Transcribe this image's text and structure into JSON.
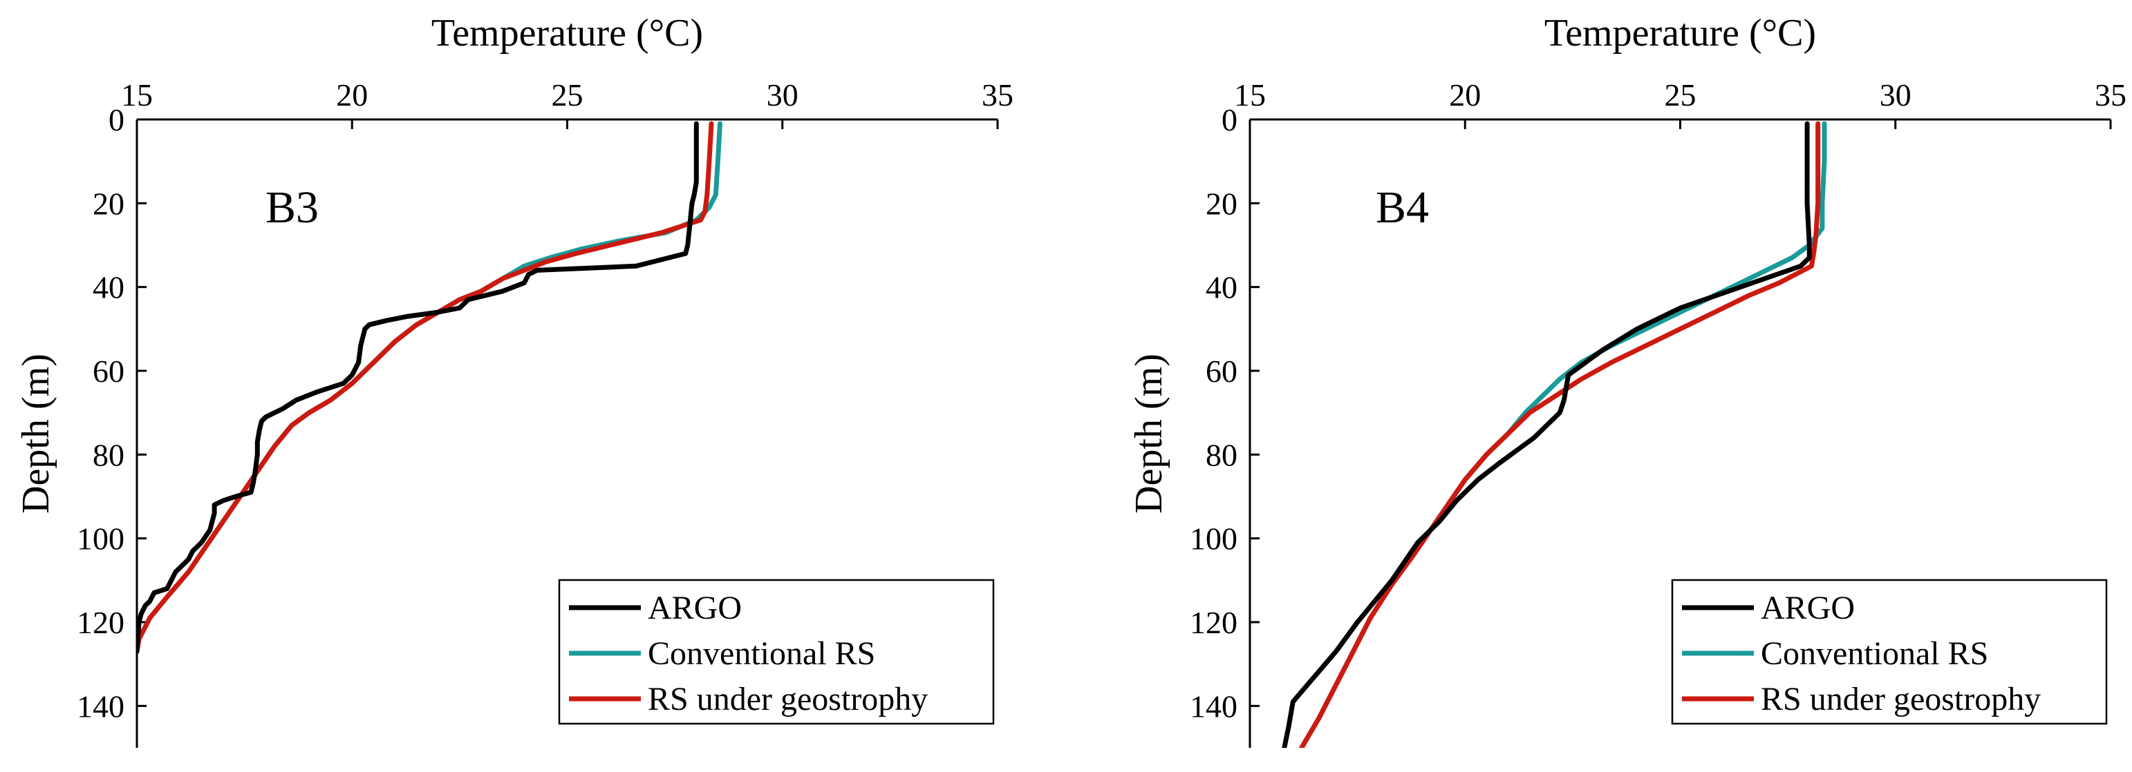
{
  "chart_data": [
    {
      "type": "line",
      "panel_label": "B3",
      "xlabel": "Temperature (°C)",
      "ylabel": "Depth (m)",
      "xlim": [
        15,
        35
      ],
      "ylim": [
        0,
        150
      ],
      "y_reversed": true,
      "x_axis_position": "top",
      "xticks": [
        "15",
        "20",
        "25",
        "30",
        "35"
      ],
      "yticks": [
        "0",
        "20",
        "40",
        "60",
        "80",
        "100",
        "120",
        "140"
      ],
      "grid": false,
      "legend_position": "bottom-right",
      "series": [
        {
          "name": "ARGO",
          "color": "#000000",
          "points": [
            [
              28.0,
              1
            ],
            [
              28.0,
              5
            ],
            [
              28.0,
              10
            ],
            [
              28.0,
              15
            ],
            [
              27.95,
              18
            ],
            [
              27.9,
              20
            ],
            [
              27.85,
              25
            ],
            [
              27.8,
              30
            ],
            [
              27.75,
              32
            ],
            [
              26.6,
              35
            ],
            [
              24.3,
              36
            ],
            [
              24.1,
              37
            ],
            [
              24.0,
              39
            ],
            [
              23.5,
              41
            ],
            [
              23.1,
              42
            ],
            [
              22.7,
              43
            ],
            [
              22.5,
              45
            ],
            [
              22.0,
              46
            ],
            [
              21.3,
              47
            ],
            [
              20.8,
              48
            ],
            [
              20.4,
              49
            ],
            [
              20.3,
              50
            ],
            [
              20.2,
              54
            ],
            [
              20.15,
              58
            ],
            [
              20.0,
              61
            ],
            [
              19.8,
              63
            ],
            [
              19.2,
              65
            ],
            [
              18.7,
              67
            ],
            [
              18.4,
              69
            ],
            [
              18.0,
              71
            ],
            [
              17.9,
              72
            ],
            [
              17.85,
              74
            ],
            [
              17.8,
              77
            ],
            [
              17.8,
              80
            ],
            [
              17.75,
              84
            ],
            [
              17.7,
              87
            ],
            [
              17.65,
              89
            ],
            [
              17.3,
              90
            ],
            [
              17.0,
              91
            ],
            [
              16.8,
              92
            ],
            [
              16.8,
              94
            ],
            [
              16.75,
              96
            ],
            [
              16.7,
              98
            ],
            [
              16.5,
              101
            ],
            [
              16.3,
              103
            ],
            [
              16.2,
              105
            ],
            [
              16.0,
              107
            ],
            [
              15.9,
              108
            ],
            [
              15.7,
              112
            ],
            [
              15.4,
              113
            ],
            [
              15.3,
              115
            ],
            [
              15.2,
              116
            ],
            [
              15.1,
              118
            ],
            [
              15.05,
              120
            ],
            [
              15.02,
              124
            ],
            [
              15.0,
              127
            ]
          ]
        },
        {
          "name": "Conventional RS",
          "color": "#1a9a9a",
          "points": [
            [
              28.55,
              1
            ],
            [
              28.5,
              10
            ],
            [
              28.45,
              18
            ],
            [
              28.3,
              21
            ],
            [
              28.0,
              24
            ],
            [
              27.3,
              27
            ],
            [
              26.2,
              29
            ],
            [
              25.3,
              31
            ],
            [
              24.6,
              33
            ],
            [
              24.0,
              35
            ],
            [
              23.5,
              38
            ],
            [
              23.0,
              41
            ],
            [
              22.5,
              43
            ],
            [
              22.0,
              46
            ],
            [
              21.5,
              49
            ],
            [
              21.0,
              53
            ],
            [
              20.5,
              58
            ],
            [
              20.0,
              63
            ],
            [
              19.5,
              67
            ],
            [
              19.0,
              70
            ],
            [
              18.6,
              73
            ],
            [
              18.2,
              78
            ],
            [
              17.8,
              84
            ],
            [
              17.4,
              90
            ],
            [
              17.0,
              96
            ],
            [
              16.6,
              102
            ],
            [
              16.2,
              108
            ],
            [
              15.7,
              114
            ],
            [
              15.3,
              119
            ],
            [
              15.05,
              124
            ],
            [
              15.0,
              126
            ]
          ]
        },
        {
          "name": "RS under geostrophy",
          "color": "#cc1a10",
          "points": [
            [
              28.35,
              1
            ],
            [
              28.3,
              10
            ],
            [
              28.25,
              18
            ],
            [
              28.2,
              22
            ],
            [
              28.1,
              24
            ],
            [
              27.2,
              27
            ],
            [
              26.0,
              30
            ],
            [
              25.2,
              32
            ],
            [
              24.5,
              34
            ],
            [
              24.0,
              36
            ],
            [
              23.5,
              38
            ],
            [
              23.0,
              41
            ],
            [
              22.5,
              43
            ],
            [
              22.0,
              46
            ],
            [
              21.5,
              49
            ],
            [
              21.0,
              53
            ],
            [
              20.5,
              58
            ],
            [
              20.0,
              63
            ],
            [
              19.5,
              67
            ],
            [
              19.0,
              70
            ],
            [
              18.6,
              73
            ],
            [
              18.2,
              78
            ],
            [
              17.8,
              84
            ],
            [
              17.4,
              90
            ],
            [
              17.0,
              96
            ],
            [
              16.6,
              102
            ],
            [
              16.2,
              108
            ],
            [
              15.7,
              114
            ],
            [
              15.3,
              119
            ],
            [
              15.05,
              124
            ],
            [
              15.0,
              127
            ]
          ]
        }
      ]
    },
    {
      "type": "line",
      "panel_label": "B4",
      "xlabel": "Temperature (°C)",
      "ylabel": "Depth (m)",
      "xlim": [
        15,
        35
      ],
      "ylim": [
        0,
        150
      ],
      "y_reversed": true,
      "x_axis_position": "top",
      "xticks": [
        "15",
        "20",
        "25",
        "30",
        "35"
      ],
      "yticks": [
        "0",
        "20",
        "40",
        "60",
        "80",
        "100",
        "120",
        "140"
      ],
      "grid": false,
      "legend_position": "bottom-right",
      "series": [
        {
          "name": "ARGO",
          "color": "#000000",
          "points": [
            [
              27.95,
              1
            ],
            [
              27.95,
              10
            ],
            [
              27.95,
              20
            ],
            [
              28.0,
              30
            ],
            [
              28.0,
              33
            ],
            [
              27.8,
              35
            ],
            [
              26.4,
              40
            ],
            [
              25.0,
              45
            ],
            [
              24.0,
              50
            ],
            [
              23.2,
              55
            ],
            [
              22.4,
              61
            ],
            [
              22.35,
              64
            ],
            [
              22.3,
              67
            ],
            [
              22.2,
              70
            ],
            [
              21.9,
              73
            ],
            [
              21.6,
              76
            ],
            [
              21.2,
              79
            ],
            [
              20.8,
              82
            ],
            [
              20.3,
              86
            ],
            [
              19.8,
              91
            ],
            [
              19.4,
              96
            ],
            [
              18.9,
              101
            ],
            [
              18.3,
              110
            ],
            [
              17.9,
              115
            ],
            [
              17.5,
              120
            ],
            [
              17.0,
              127
            ],
            [
              16.5,
              133
            ],
            [
              16.0,
              139
            ],
            [
              15.9,
              145
            ],
            [
              15.8,
              150
            ]
          ]
        },
        {
          "name": "Conventional RS",
          "color": "#1a9a9a",
          "points": [
            [
              28.35,
              1
            ],
            [
              28.35,
              10
            ],
            [
              28.3,
              20
            ],
            [
              28.3,
              26
            ],
            [
              28.0,
              30
            ],
            [
              27.6,
              33
            ],
            [
              27.0,
              36
            ],
            [
              26.4,
              39
            ],
            [
              25.8,
              42
            ],
            [
              25.0,
              46
            ],
            [
              24.2,
              50
            ],
            [
              23.4,
              54
            ],
            [
              22.7,
              58
            ],
            [
              22.2,
              62
            ],
            [
              21.8,
              66
            ],
            [
              21.4,
              70
            ],
            [
              21.0,
              75
            ],
            [
              20.5,
              80
            ],
            [
              20.0,
              86
            ],
            [
              19.6,
              92
            ],
            [
              19.2,
              98
            ],
            [
              18.8,
              104
            ],
            [
              18.3,
              111
            ],
            [
              17.8,
              119
            ],
            [
              17.4,
              127
            ],
            [
              17.0,
              135
            ],
            [
              16.6,
              143
            ],
            [
              16.2,
              150
            ]
          ]
        },
        {
          "name": "RS under geostrophy",
          "color": "#cc1a10",
          "points": [
            [
              28.2,
              1
            ],
            [
              28.2,
              10
            ],
            [
              28.2,
              20
            ],
            [
              28.15,
              28
            ],
            [
              28.1,
              32
            ],
            [
              28.05,
              35
            ],
            [
              27.3,
              39
            ],
            [
              26.6,
              42
            ],
            [
              25.8,
              46
            ],
            [
              25.0,
              50
            ],
            [
              24.2,
              54
            ],
            [
              23.4,
              58
            ],
            [
              22.7,
              62
            ],
            [
              22.1,
              66
            ],
            [
              21.5,
              70
            ],
            [
              21.0,
              75
            ],
            [
              20.5,
              80
            ],
            [
              20.0,
              86
            ],
            [
              19.6,
              92
            ],
            [
              19.2,
              98
            ],
            [
              18.8,
              104
            ],
            [
              18.3,
              111
            ],
            [
              17.8,
              119
            ],
            [
              17.4,
              127
            ],
            [
              17.0,
              135
            ],
            [
              16.6,
              143
            ],
            [
              16.2,
              150
            ]
          ]
        }
      ]
    }
  ]
}
